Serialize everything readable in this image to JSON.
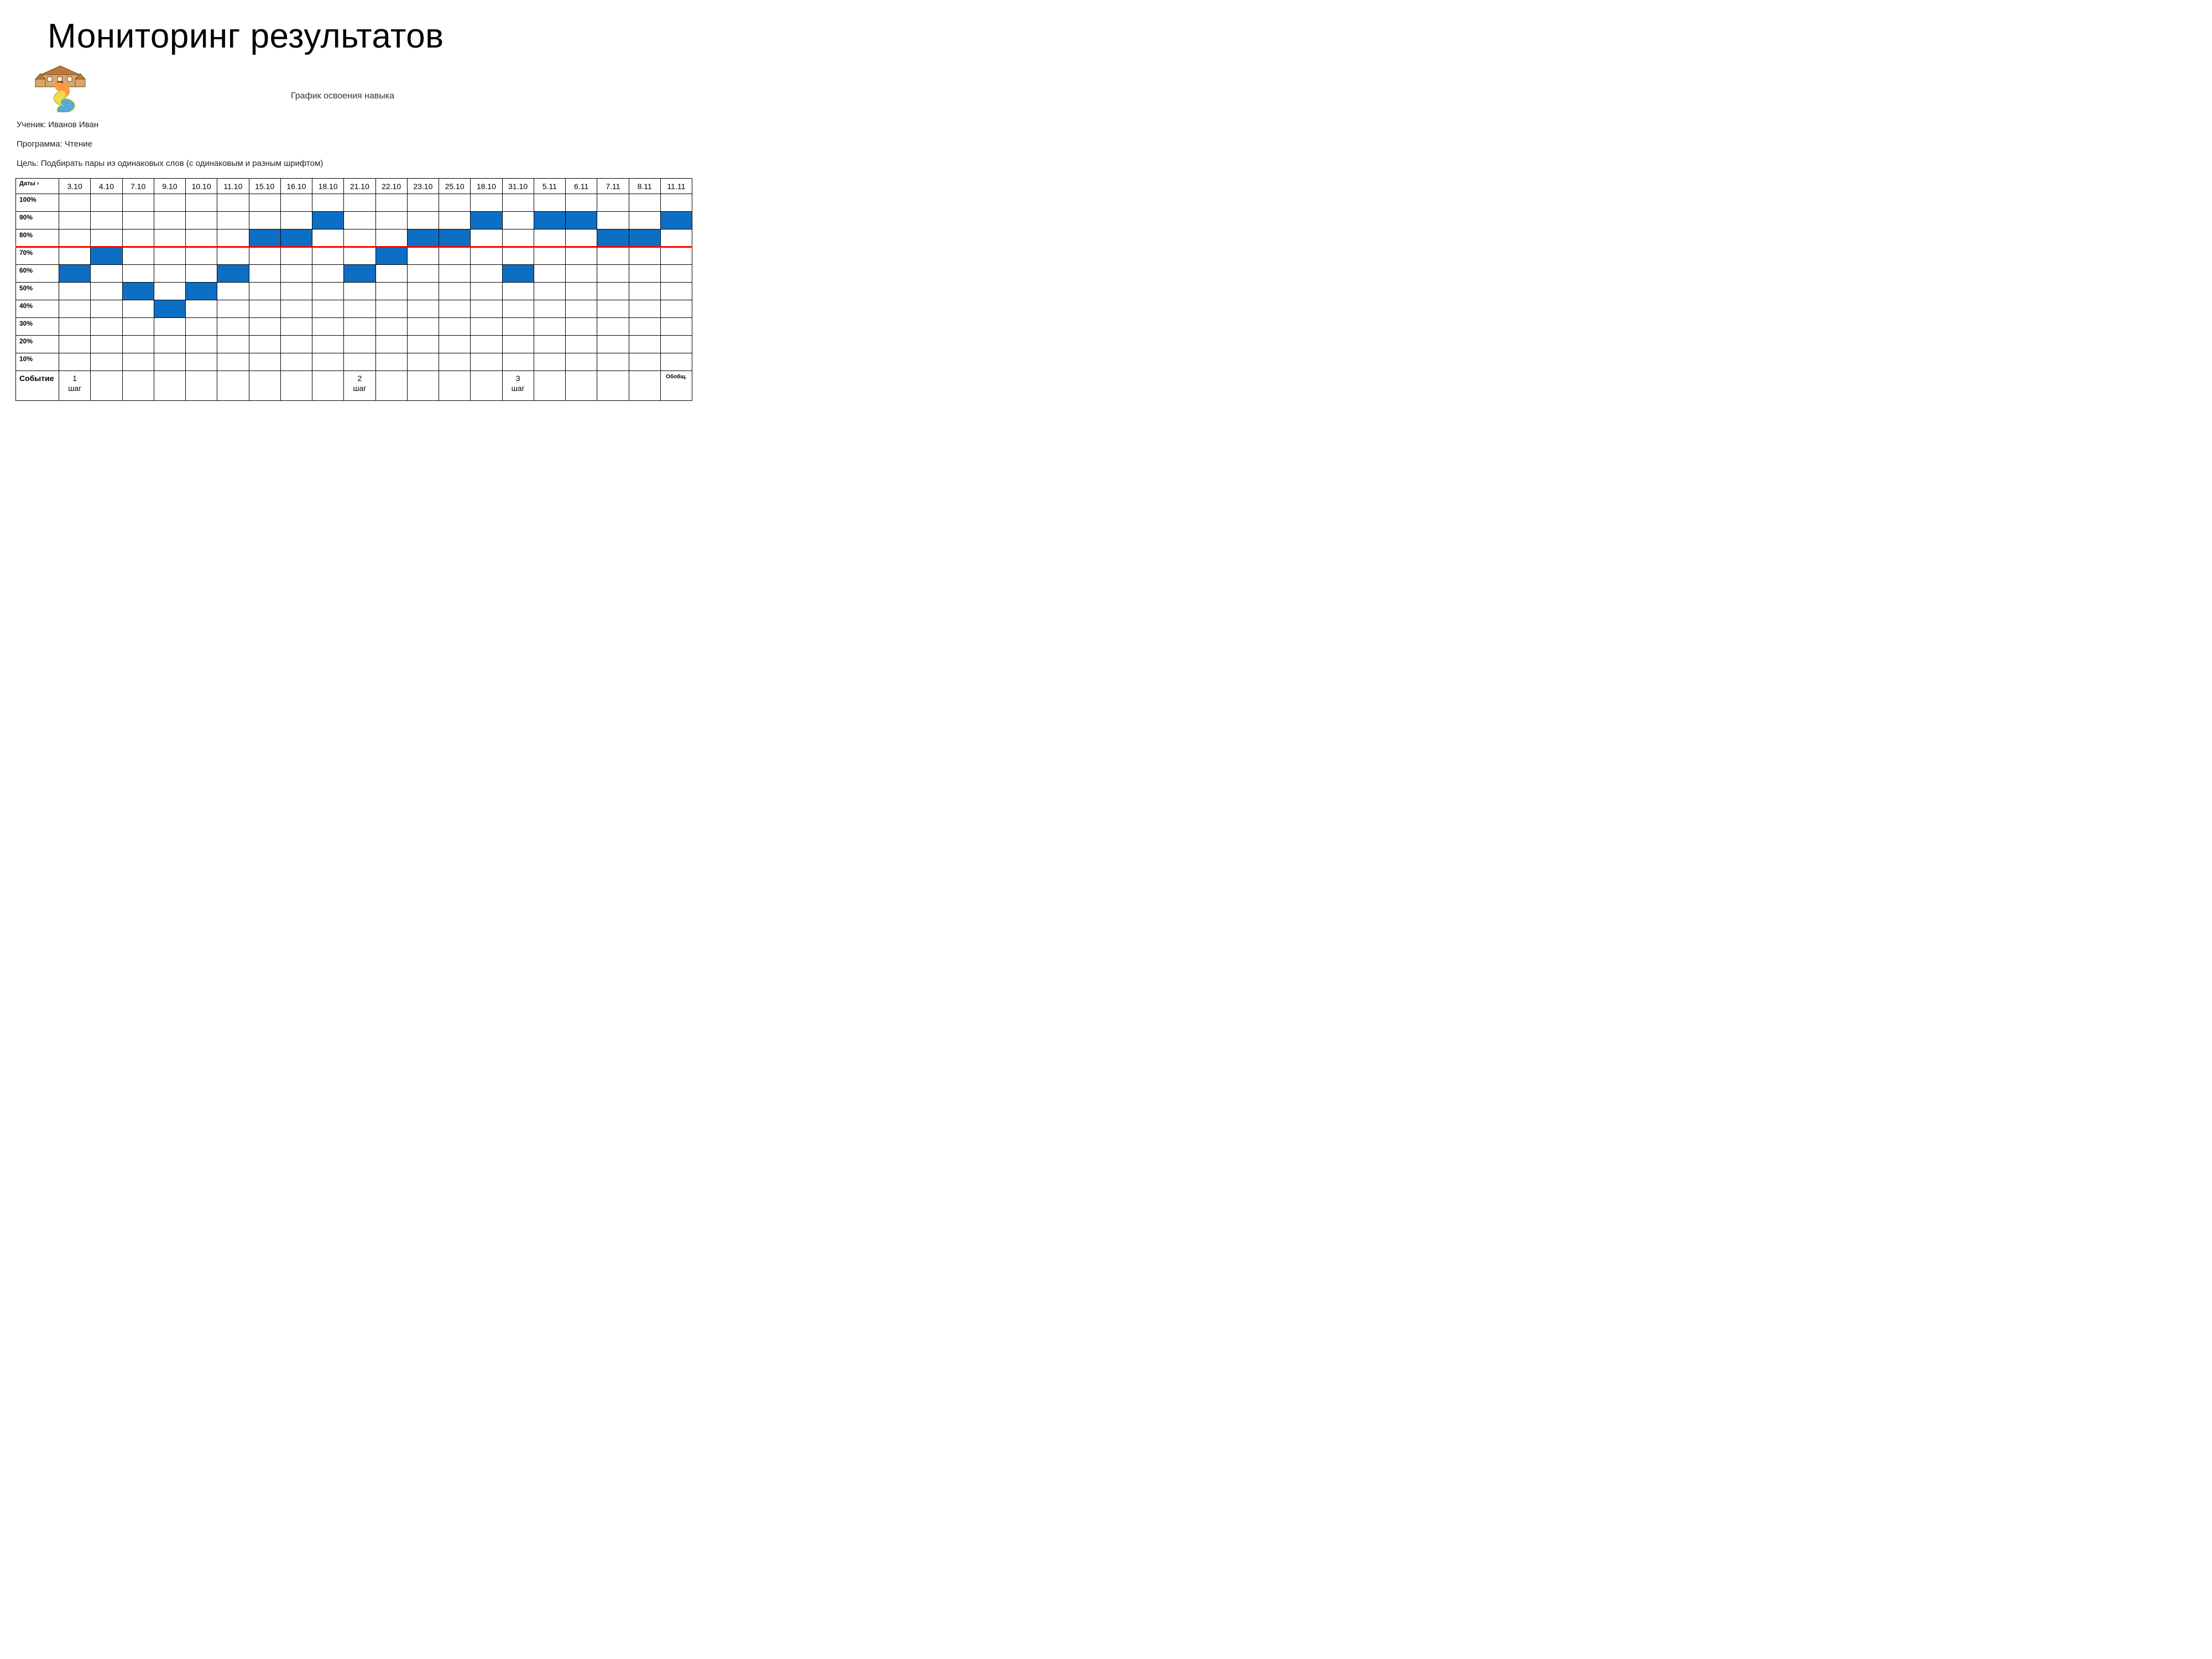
{
  "title": "Мониторинг результатов",
  "subtitle": "График освоения навыка",
  "meta": {
    "student_label": "Ученик: Иванов Иван",
    "program_label": "Программа: Чтение",
    "goal_label": "Цель: Подбирать пары из одинаковых слов (с одинаковым и разным шрифтом)"
  },
  "chart": {
    "type": "table",
    "fill_color": "#0d6fc4",
    "threshold_color": "#ff0000",
    "threshold_between_rows": [
      "80%",
      "70%"
    ],
    "header_row_label": "Даты",
    "event_row_label": "Событие",
    "dates": [
      "3.10",
      "4.10",
      "7.10",
      "9.10",
      "10.10",
      "11.10",
      "15.10",
      "16.10",
      "18.10",
      "21.10",
      "22.10",
      "23.10",
      "25.10",
      "18.10",
      "31.10",
      "5.11",
      "6.11",
      "7.11",
      "8.11",
      "11.11"
    ],
    "percent_rows": [
      "100%",
      "90%",
      "80%",
      "70%",
      "60%",
      "50%",
      "40%",
      "30%",
      "20%",
      "10%"
    ],
    "filled": {
      "3.10": "60%",
      "4.10": "70%",
      "7.10": "50%",
      "9.10": "40%",
      "10.10": "50%",
      "11.10": "60%",
      "15.10": "80%",
      "16.10": "80%",
      "18.10": "90%",
      "21.10": "60%",
      "22.10": "70%",
      "23.10": "80%",
      "25.10": "80%",
      "18.10_2": "90%",
      "31.10": "60%",
      "5.11": "90%",
      "6.11": "90%",
      "7.11": "80%",
      "8.11": "80%",
      "11.11": "90%"
    },
    "events": {
      "3.10": "1\nшаг",
      "21.10": "2\nшаг",
      "31.10": "3\nшаг",
      "11.11": "Обобщ."
    },
    "border_color": "#000000",
    "background_color": "#ffffff",
    "header_fontsize": 14,
    "rowlabel_fontsize": 12
  },
  "logo": {
    "house_roof": "#b97a3a",
    "house_body": "#d9a66b",
    "path_colors": [
      "#ff9a3c",
      "#7cc04b",
      "#f2d94e",
      "#5aa8d6"
    ]
  }
}
